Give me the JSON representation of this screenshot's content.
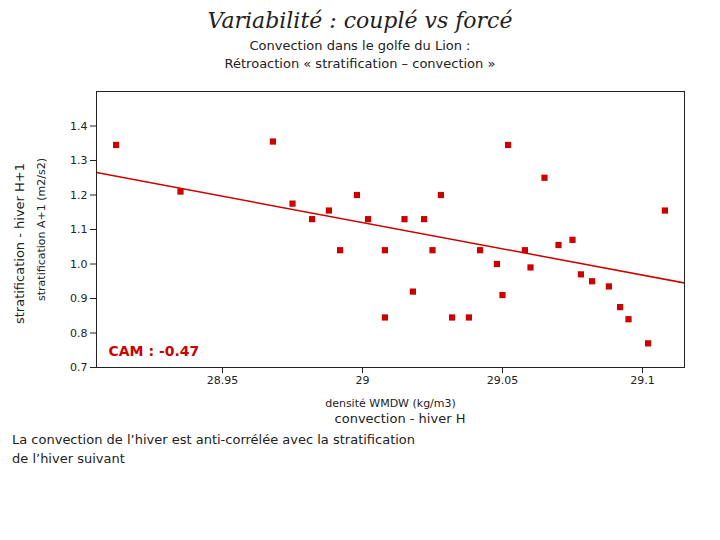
{
  "chart_data": {
    "type": "scatter",
    "title": "Variabilité : couplé vs forcé",
    "subtitle": [
      "Convection dans le golfe du Lion :",
      "Rétroaction  « stratification – convection »"
    ],
    "xlabel": "densité WMDW (kg/m3)",
    "ylabel": "stratification A+1 (m2/s2)",
    "xlabel_outer": "convection - hiver H",
    "ylabel_outer": "stratification - hiver H+1",
    "caption": [
      "La convection de l’hiver est anti-corrélée avec la stratification",
      "de l’hiver suivant"
    ],
    "annotations": [
      {
        "text": "CAM : -0.47",
        "color": "#cc0000"
      }
    ],
    "xlim": [
      28.905,
      29.115
    ],
    "ylim": [
      0.7,
      1.5
    ],
    "xticks": [
      28.95,
      29,
      29.05,
      29.1
    ],
    "yticks": [
      0.7,
      0.8,
      0.9,
      {
        "value": 1.0,
        "label": "1.0"
      },
      1.1,
      1.2,
      1.3,
      1.4
    ],
    "grid": false,
    "series": [
      {
        "type": "scatter",
        "marker": "square",
        "color": "#cc0000",
        "x": [
          28.912,
          28.935,
          28.968,
          28.975,
          28.982,
          28.988,
          28.992,
          28.998,
          29.002,
          29.008,
          29.008,
          29.015,
          29.018,
          29.022,
          29.025,
          29.028,
          29.032,
          29.038,
          29.042,
          29.048,
          29.05,
          29.052,
          29.058,
          29.06,
          29.065,
          29.07,
          29.075,
          29.078,
          29.082,
          29.088,
          29.092,
          29.095,
          29.102,
          29.108
        ],
        "values": [
          1.345,
          1.21,
          1.355,
          1.175,
          1.13,
          1.155,
          1.04,
          1.2,
          1.13,
          1.04,
          0.845,
          1.13,
          0.92,
          1.13,
          1.04,
          1.2,
          0.845,
          0.845,
          1.04,
          1.0,
          0.91,
          1.345,
          1.04,
          0.99,
          1.25,
          1.055,
          1.07,
          0.97,
          0.95,
          0.935,
          0.875,
          0.84,
          0.77,
          1.155
        ]
      },
      {
        "type": "line",
        "color": "#cc0000",
        "x": [
          28.905,
          29.115
        ],
        "values": [
          1.265,
          0.945
        ]
      }
    ]
  }
}
